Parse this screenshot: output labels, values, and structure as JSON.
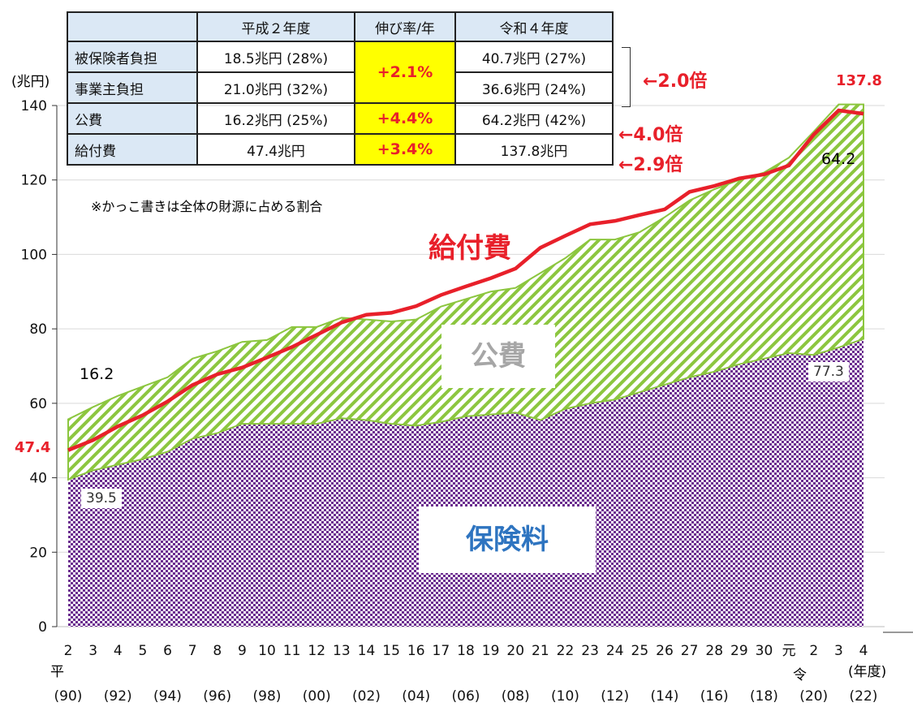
{
  "table": {
    "headers": [
      "",
      "平成２年度",
      "伸び率/年",
      "令和４年度"
    ],
    "rows": [
      {
        "label": "被保険者負担",
        "h2": "18.5兆円 (28%)",
        "r4": "40.7兆円 (27%)"
      },
      {
        "label": "事業主負担",
        "h2": "21.0兆円 (32%)",
        "r4": "36.6兆円 (24%)"
      },
      {
        "label": "公費",
        "h2": "16.2兆円 (25%)",
        "rate": "+4.4%",
        "r4": "64.2兆円 (42%)"
      },
      {
        "label": "給付費",
        "h2": "47.4兆円",
        "rate": "+3.4%",
        "r4": "137.8兆円"
      }
    ],
    "insurance_rate": "+2.1%",
    "ratios": [
      "←2.0倍",
      "←4.0倍",
      "←2.9倍"
    ],
    "note": "※かっこ書きは全体の財源に占める割合"
  },
  "chart_data": {
    "type": "area",
    "ylabel": "(兆円)",
    "ylim": [
      0,
      140
    ],
    "yticks": [
      0,
      20,
      40,
      60,
      80,
      100,
      120,
      140
    ],
    "categories": [
      "2",
      "3",
      "4",
      "5",
      "6",
      "7",
      "8",
      "9",
      "10",
      "11",
      "12",
      "13",
      "14",
      "15",
      "16",
      "17",
      "18",
      "19",
      "20",
      "21",
      "22",
      "23",
      "24",
      "25",
      "26",
      "27",
      "28",
      "29",
      "30",
      "元",
      "2",
      "3",
      "4"
    ],
    "era_labels": {
      "heisei": "平",
      "reiwa": "令",
      "unit": "(年度)"
    },
    "western_years": [
      "(90)",
      "(92)",
      "(94)",
      "(96)",
      "(98)",
      "(00)",
      "(02)",
      "(04)",
      "(06)",
      "(08)",
      "(10)",
      "(12)",
      "(14)",
      "(16)",
      "(18)",
      "(20)",
      "(22)"
    ],
    "series": [
      {
        "name": "保険料",
        "type": "stacked-area",
        "color": "#7a3a9a",
        "values": [
          39.5,
          42,
          43.5,
          45,
          47,
          50.5,
          52,
          54.5,
          54.5,
          54.5,
          54.5,
          56,
          55.5,
          54.5,
          54,
          55,
          56.5,
          57,
          57.5,
          55.5,
          58.5,
          60,
          61,
          63,
          65,
          67,
          68.5,
          70.5,
          72,
          73.5,
          73,
          75,
          77.3
        ]
      },
      {
        "name": "公費",
        "type": "stacked-area",
        "color": "#8cc63f",
        "values": [
          16.2,
          17,
          18.5,
          19.5,
          20,
          21.5,
          22,
          22,
          22.5,
          26,
          26,
          27,
          27,
          27.5,
          28.5,
          31,
          31.5,
          33,
          33.5,
          39.5,
          40.5,
          44,
          43,
          43,
          45,
          47.5,
          49,
          49.5,
          50,
          52.5,
          60,
          66,
          64.2
        ]
      },
      {
        "name": "給付費",
        "type": "line",
        "color": "#e8202a",
        "values": [
          47.4,
          50.1,
          53.8,
          56.8,
          60.5,
          64.9,
          67.8,
          69.6,
          72.3,
          75.1,
          78.4,
          81.7,
          83.8,
          84.3,
          86.1,
          89.1,
          91.4,
          93.6,
          96.2,
          101.8,
          105.0,
          108.1,
          109.0,
          110.6,
          112.1,
          116.8,
          118.4,
          120.4,
          121.5,
          123.9,
          132.2,
          138.7,
          137.8
        ]
      }
    ],
    "annotations": {
      "start_benefit": "47.4",
      "start_public": "16.2",
      "start_insurance": "39.5",
      "end_benefit": "137.8",
      "end_public": "64.2",
      "end_insurance": "77.3",
      "benefit_label": "給付費",
      "public_label": "公費",
      "insurance_label": "保険料"
    }
  }
}
